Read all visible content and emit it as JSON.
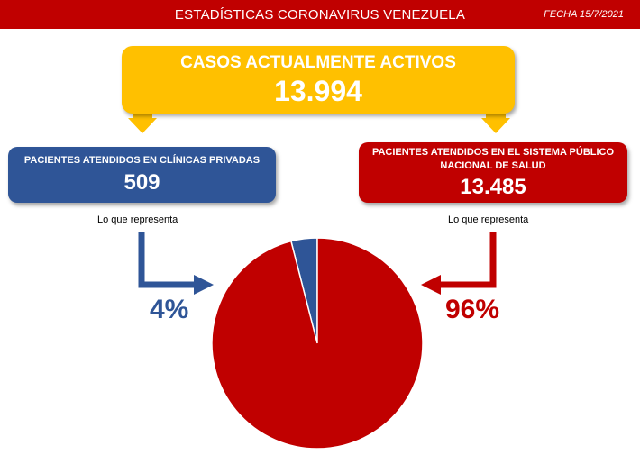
{
  "header": {
    "title": "ESTADÍSTICAS CORONAVIRUS VENEZUELA",
    "date": "FECHA 15/7/2021"
  },
  "active_cases": {
    "label": "CASOS ACTUALMENTE ACTIVOS",
    "value": "13.994"
  },
  "private": {
    "label": "PACIENTES ATENDIDOS EN CLÍNICAS PRIVADAS",
    "value": "509",
    "note": "Lo que representa",
    "percent": "4%"
  },
  "public": {
    "label_line1": "PACIENTES ATENDIDOS EN EL SISTEMA PÚBLICO",
    "label_line2": "NACIONAL DE SALUD",
    "value": "13.485",
    "note": "Lo que representa",
    "percent": "96%"
  },
  "colors": {
    "red": "#c00000",
    "blue": "#2f5597",
    "yellow": "#ffc000"
  },
  "chart_data": {
    "type": "pie",
    "categories": [
      "Clínicas privadas",
      "Sistema público nacional de salud"
    ],
    "values": [
      4,
      96
    ],
    "colors": [
      "#2f5597",
      "#c00000"
    ]
  }
}
